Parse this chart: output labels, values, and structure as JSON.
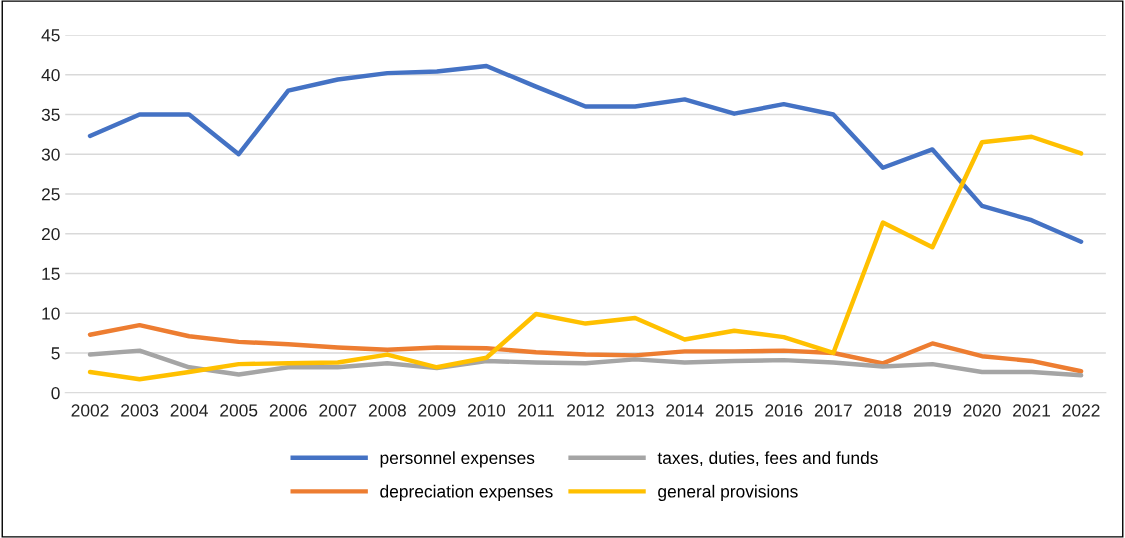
{
  "chart_data": {
    "type": "line",
    "categories": [
      "2002",
      "2003",
      "2004",
      "2005",
      "2006",
      "2007",
      "2008",
      "2009",
      "2010",
      "2011",
      "2012",
      "2013",
      "2014",
      "2015",
      "2016",
      "2017",
      "2018",
      "2019",
      "2020",
      "2021",
      "2022"
    ],
    "series": [
      {
        "name": "personnel expenses",
        "color": "#4472c4",
        "values": [
          32.3,
          35,
          35,
          30,
          38,
          39.4,
          40.2,
          40.4,
          41.1,
          38.5,
          36,
          36,
          36.9,
          35.1,
          36.3,
          35,
          28.3,
          30.6,
          23.5,
          21.7,
          19
        ]
      },
      {
        "name": "depreciation expenses",
        "color": "#ed7d31",
        "values": [
          7.3,
          8.5,
          7.1,
          6.4,
          6.1,
          5.7,
          5.4,
          5.7,
          5.6,
          5.1,
          4.8,
          4.7,
          5.2,
          5.2,
          5.3,
          5.0,
          3.7,
          6.2,
          4.6,
          4.0,
          2.7
        ]
      },
      {
        "name": "taxes, duties, fees and funds",
        "color": "#a5a5a5",
        "values": [
          4.8,
          5.3,
          3.2,
          2.3,
          3.2,
          3.2,
          3.7,
          3.1,
          4.0,
          3.8,
          3.7,
          4.2,
          3.8,
          4.0,
          4.1,
          3.8,
          3.3,
          3.6,
          2.6,
          2.6,
          2.2
        ]
      },
      {
        "name": "general provisions",
        "color": "#ffc000",
        "values": [
          2.6,
          1.7,
          2.6,
          3.6,
          3.7,
          3.8,
          4.8,
          3.2,
          4.4,
          9.9,
          8.7,
          9.4,
          6.7,
          7.8,
          7.0,
          5.0,
          21.4,
          18.3,
          31.5,
          32.2,
          30.1
        ]
      }
    ],
    "ylim": [
      0,
      45
    ],
    "yticks": [
      0,
      5,
      10,
      15,
      20,
      25,
      30,
      35,
      40,
      45
    ],
    "grid": "y",
    "legend": "bottom",
    "marker": "none",
    "line_style": "solid"
  }
}
